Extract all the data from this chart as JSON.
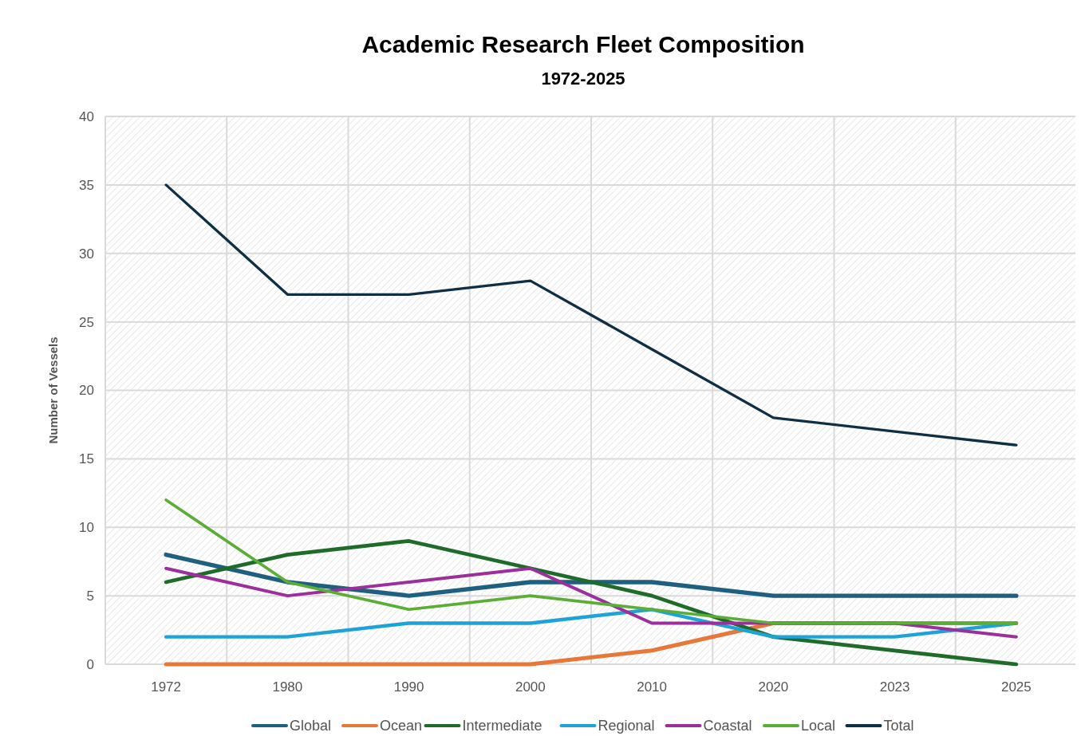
{
  "chart_data": {
    "type": "line",
    "title": "Academic Research Fleet Composition",
    "subtitle": "1972-2025",
    "ylabel": "Number of Vessels",
    "categories": [
      "1972",
      "1980",
      "1990",
      "2000",
      "2010",
      "2020",
      "2023",
      "2025"
    ],
    "ylim": [
      0,
      40
    ],
    "yticks": [
      0,
      5,
      10,
      15,
      20,
      25,
      30,
      35,
      40
    ],
    "grid": true,
    "legend": "bottom",
    "line_style": "solid",
    "marker": "none",
    "series": [
      {
        "name": "Global",
        "color": "#1f5f7f",
        "values": [
          8,
          6,
          5,
          6,
          6,
          5,
          5,
          5
        ]
      },
      {
        "name": "Ocean",
        "color": "#e8773a",
        "values": [
          0,
          0,
          0,
          0,
          1,
          3,
          3,
          3
        ]
      },
      {
        "name": "Intermediate",
        "color": "#1e6b2a",
        "values": [
          6,
          8,
          9,
          7,
          5,
          2,
          1,
          0
        ]
      },
      {
        "name": "Regional",
        "color": "#1ea3d8",
        "values": [
          2,
          2,
          3,
          3,
          4,
          2,
          2,
          3
        ]
      },
      {
        "name": "Coastal",
        "color": "#9b2f9b",
        "values": [
          7,
          5,
          6,
          7,
          3,
          3,
          3,
          2
        ]
      },
      {
        "name": "Local",
        "color": "#5aad35",
        "values": [
          12,
          6,
          4,
          5,
          4,
          3,
          3,
          3
        ]
      },
      {
        "name": "Total",
        "color": "#0e2f44",
        "values": [
          35,
          27,
          27,
          28,
          23,
          18,
          17,
          16
        ]
      }
    ]
  }
}
